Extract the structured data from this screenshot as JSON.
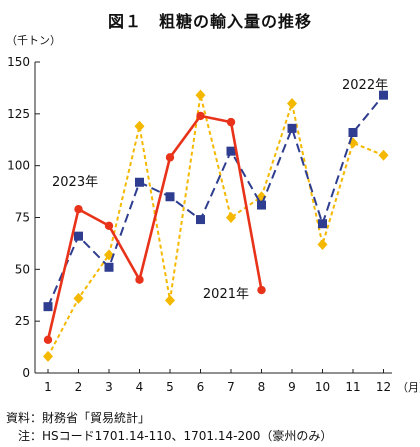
{
  "chart_data": {
    "type": "line",
    "title": "図１　粗糖の輸入量の推移",
    "ylabel": "（千トン）",
    "xlabel": "（月）",
    "ylim": [
      0,
      150
    ],
    "yticks": [
      0,
      25,
      50,
      75,
      100,
      125,
      150
    ],
    "categories": [
      "1",
      "2",
      "3",
      "4",
      "5",
      "6",
      "7",
      "8",
      "9",
      "10",
      "11",
      "12"
    ],
    "grid": false,
    "series": [
      {
        "name": "2021年",
        "color": "#f5b800",
        "style": "dotted",
        "marker": "diamond",
        "values": [
          8,
          36,
          57,
          119,
          35,
          134,
          75,
          85,
          130,
          62,
          111,
          105
        ]
      },
      {
        "name": "2022年",
        "color": "#2e3d8f",
        "style": "dashed",
        "marker": "square",
        "values": [
          32,
          66,
          51,
          92,
          85,
          74,
          107,
          81,
          118,
          72,
          116,
          134
        ]
      },
      {
        "name": "2023年",
        "color": "#e8331a",
        "style": "solid",
        "marker": "circle",
        "values": [
          16,
          79,
          71,
          45,
          104,
          124,
          121,
          40,
          null,
          null,
          null,
          null
        ]
      }
    ],
    "annotations": [
      {
        "text": "2022年",
        "series": "2022年"
      },
      {
        "text": "2023年",
        "series": "2023年"
      },
      {
        "text": "2021年",
        "series": "2021年"
      }
    ]
  },
  "notes": {
    "source": "資料：財務省「貿易統計」",
    "note": "　注：HSコード1701.14-110、1701.14-200（豪州のみ）"
  }
}
